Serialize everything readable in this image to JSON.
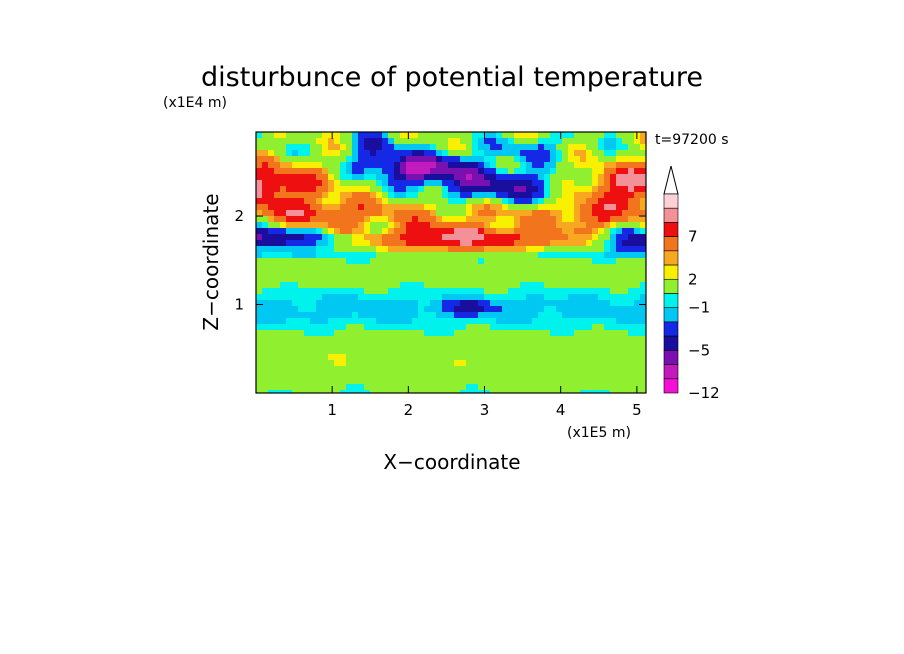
{
  "chart_data": {
    "type": "heatmap",
    "title": "disturbunce of potential temperature",
    "time_label": "t=97200 s",
    "xlabel": "X−coordinate",
    "ylabel": "Z−coordinate",
    "x_unit": "(x1E5 m)",
    "y_unit": "(x1E4 m)",
    "xlim": [
      0,
      5.12
    ],
    "ylim": [
      0,
      2.95
    ],
    "x_ticks": [
      "1",
      "2",
      "3",
      "4",
      "5"
    ],
    "y_ticks": [
      "1",
      "2"
    ],
    "colorbar": {
      "labels": [
        "7",
        "2",
        "−1",
        "−5",
        "−12"
      ],
      "levels_top_to_bottom": [
        10,
        9,
        7,
        5,
        3,
        2,
        1,
        -1,
        -2,
        -3,
        -5,
        -7,
        -9,
        -12
      ],
      "colors_top_to_bottom": [
        "#ffd0d6",
        "#f49098",
        "#ee1010",
        "#f2751e",
        "#f8a820",
        "#f8f000",
        "#90f030",
        "#00f2ec",
        "#00c8f2",
        "#1428e6",
        "#1a0e9e",
        "#7a10b0",
        "#c21abd",
        "#f50ed5"
      ],
      "extend": "max"
    },
    "features": [
      {
        "x": 0.1,
        "z": 2.35,
        "value": 8
      },
      {
        "x": 0.1,
        "z": 1.75,
        "value": -6
      },
      {
        "x": 2.3,
        "z": 2.5,
        "value": -8
      },
      {
        "x": 3.0,
        "z": 2.35,
        "value": -6
      },
      {
        "x": 2.7,
        "z": 1.72,
        "value": 6
      },
      {
        "x": 5.1,
        "z": 2.35,
        "value": 8
      },
      {
        "x": 5.0,
        "z": 1.72,
        "value": -5
      },
      {
        "x": 2.8,
        "z": 0.97,
        "value": -4
      },
      {
        "x": 2.5,
        "z": 0.5,
        "value": 1
      }
    ]
  }
}
